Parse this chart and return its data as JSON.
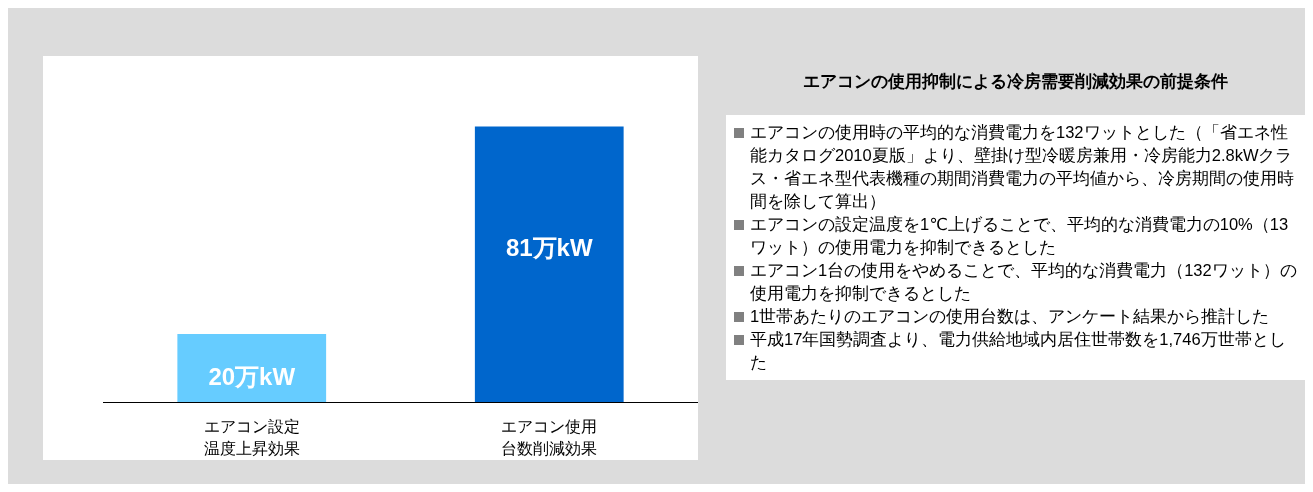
{
  "chart_data": [
    {
      "type": "bar",
      "categories": [
        "エアコン設定温度上昇効果",
        "エアコン使用台数削減効果"
      ],
      "values": [
        20,
        81
      ],
      "colors": [
        "#66ccff",
        "#0066cc"
      ],
      "value_labels": [
        "20万kW",
        "81万kW"
      ]
    },
    {
      "type": "other",
      "title": "エアコンの使用抑制による冷房需要削減効果の前提条件",
      "annotations": [
        "エアコンの使用時の平均的な消費電力を132ワットとした（「省エネ性能カタログ2010夏版」より、壁掛け型冷暖房兼用・冷房能力2.8kWクラス・省エネ型代表機種の期間消費電力の平均値から、冷房期間の使用時間を除して算出）",
        "エアコンの設定温度を1℃上げることで、平均的な消費電力の10%（13ワット）の使用電力を抑制できるとした",
        "エアコン1台の使用をやめることで、平均的な消費電力（132ワット）の使用電力を抑制できるとした",
        "1世帯あたりのエアコンの使用台数は、アンケート結果から推計した",
        "平成17年国勢調査より、電力供給地域内居住世帯数を1,746万世帯とした"
      ]
    }
  ]
}
